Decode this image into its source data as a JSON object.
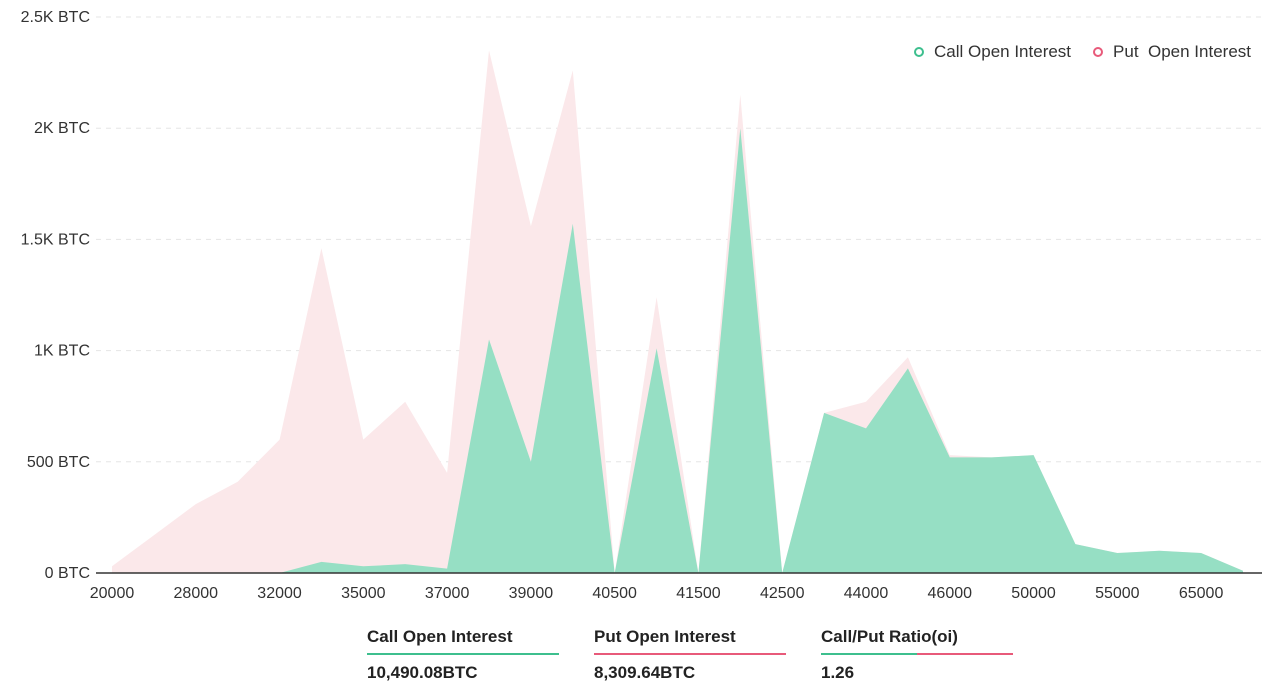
{
  "chart_data": {
    "type": "area",
    "x": [
      "20000",
      "",
      "28000",
      "",
      "32000",
      "",
      "35000",
      "",
      "37000",
      "",
      "39000",
      "",
      "40500",
      "",
      "41500",
      "",
      "42500",
      "",
      "44000",
      "",
      "46000",
      "",
      "50000",
      "",
      "55000",
      "",
      "65000",
      ""
    ],
    "xtick_labels": [
      "20000",
      "28000",
      "32000",
      "35000",
      "37000",
      "39000",
      "40500",
      "41500",
      "42500",
      "44000",
      "46000",
      "50000",
      "55000",
      "65000"
    ],
    "ytick_labels": [
      "0 BTC",
      "500 BTC",
      "1K BTC",
      "1.5K BTC",
      "2K BTC",
      "2.5K BTC"
    ],
    "ylim": [
      0,
      2500
    ],
    "grid": true,
    "legend_position": "top-right",
    "series": [
      {
        "name": "Put  Open Interest",
        "color": "#e85a7a",
        "fill": "#fbe8ea",
        "values": [
          30,
          170,
          310,
          410,
          600,
          1460,
          600,
          770,
          450,
          2350,
          1560,
          2260,
          0,
          1240,
          0,
          2150,
          0,
          720,
          770,
          970,
          530,
          520,
          530,
          130,
          90,
          100,
          90,
          10
        ]
      },
      {
        "name": "Call Open Interest",
        "color": "#3dbf8e",
        "fill": "#96dfc4",
        "values": [
          0,
          0,
          0,
          0,
          0,
          50,
          30,
          40,
          20,
          1050,
          500,
          1570,
          0,
          1010,
          0,
          2000,
          0,
          720,
          650,
          920,
          520,
          520,
          530,
          130,
          90,
          100,
          90,
          10
        ]
      }
    ]
  },
  "legend": {
    "call_label": "Call Open Interest",
    "put_label": "Put  Open Interest"
  },
  "summary": {
    "call_label": "Call Open Interest",
    "call_value": "10,490.08BTC",
    "put_label": "Put Open Interest",
    "put_value": "8,309.64BTC",
    "ratio_label": "Call/Put Ratio(oi)",
    "ratio_value": "1.26"
  },
  "colors": {
    "call": "#3dbf8e",
    "put": "#e85a7a",
    "axis": "#333333",
    "grid": "#e5e5e5"
  }
}
